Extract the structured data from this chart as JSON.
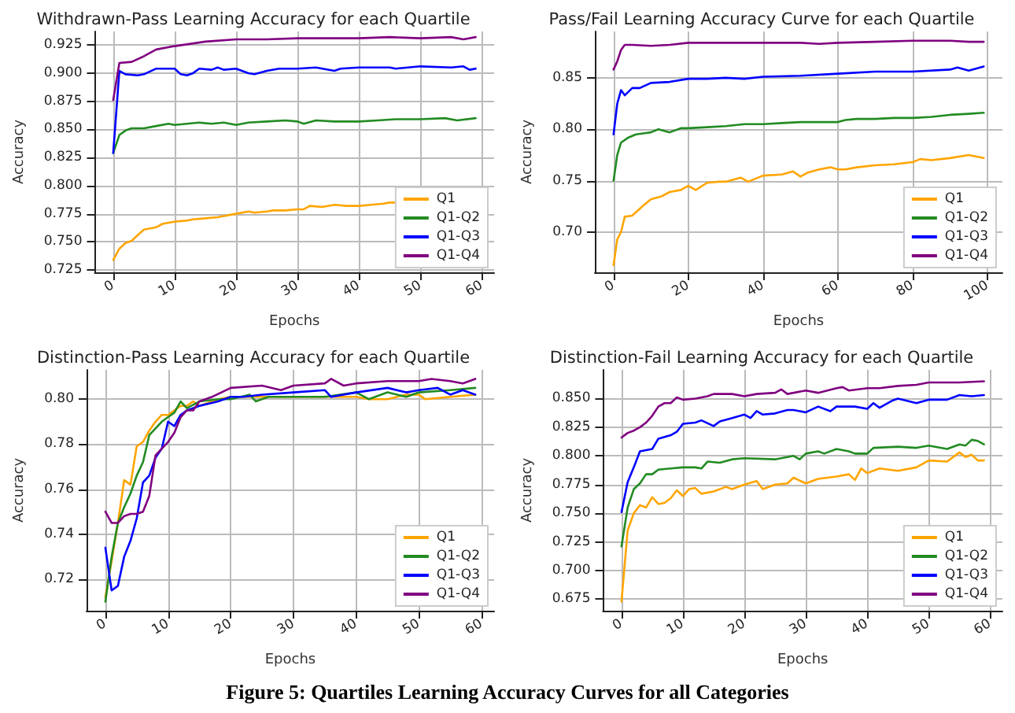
{
  "chart_data": [
    {
      "type": "line",
      "title": "Withdrawn-Pass Learning Accuracy for each Quartile",
      "xlabel": "Epochs",
      "ylabel": "Accuracy",
      "xlim": [
        -3,
        62
      ],
      "xticks": [
        0,
        10,
        20,
        30,
        40,
        50,
        60
      ],
      "ylim": [
        0.723,
        0.937
      ],
      "yticks": [
        0.725,
        {
          "value": 0.75,
          "label": "0.750"
        },
        0.775,
        {
          "value": 0.8,
          "label": "0.800"
        },
        0.825,
        {
          "value": 0.85,
          "label": "0.850"
        },
        0.875,
        {
          "value": 0.9,
          "label": "0.900"
        },
        0.925
      ],
      "grid": true,
      "legend": "bottom right",
      "marker": "none",
      "series": [
        {
          "name": "Q1",
          "color": "#ffa500",
          "x": [
            0,
            1,
            2,
            3,
            4,
            5,
            6,
            7,
            8,
            9,
            10,
            12,
            13,
            15,
            17,
            20,
            22,
            23,
            25,
            26,
            28,
            30,
            31,
            32,
            34,
            36,
            38,
            40,
            42,
            44,
            45,
            47
          ],
          "values": [
            0.734,
            0.744,
            0.749,
            0.751,
            0.756,
            0.761,
            0.762,
            0.763,
            0.766,
            0.767,
            0.768,
            0.769,
            0.77,
            0.771,
            0.772,
            0.775,
            0.777,
            0.776,
            0.777,
            0.778,
            0.778,
            0.779,
            0.779,
            0.782,
            0.781,
            0.783,
            0.782,
            0.782,
            0.783,
            0.784,
            0.785,
            0.785
          ]
        },
        {
          "name": "Q1-Q2",
          "color": "#228b22",
          "x": [
            0,
            1,
            2,
            3,
            5,
            7,
            9,
            10,
            12,
            14,
            16,
            18,
            20,
            22,
            25,
            28,
            30,
            31,
            33,
            36,
            40,
            43,
            46,
            50,
            54,
            56,
            59
          ],
          "values": [
            0.829,
            0.845,
            0.849,
            0.851,
            0.851,
            0.853,
            0.855,
            0.854,
            0.855,
            0.856,
            0.855,
            0.856,
            0.854,
            0.856,
            0.857,
            0.858,
            0.857,
            0.855,
            0.858,
            0.857,
            0.857,
            0.858,
            0.859,
            0.859,
            0.86,
            0.858,
            0.86
          ]
        },
        {
          "name": "Q1-Q3",
          "color": "#0000ff",
          "x": [
            0,
            1,
            2,
            4,
            5,
            7,
            10,
            11,
            12,
            13,
            14,
            16,
            17,
            18,
            20,
            22,
            23,
            25,
            27,
            30,
            33,
            36,
            37,
            40,
            45,
            46,
            50,
            55,
            57,
            58,
            59
          ],
          "values": [
            0.829,
            0.902,
            0.899,
            0.898,
            0.899,
            0.904,
            0.904,
            0.899,
            0.898,
            0.9,
            0.904,
            0.903,
            0.905,
            0.903,
            0.904,
            0.9,
            0.899,
            0.902,
            0.904,
            0.904,
            0.905,
            0.902,
            0.904,
            0.905,
            0.905,
            0.904,
            0.906,
            0.905,
            0.906,
            0.903,
            0.904
          ]
        },
        {
          "name": "Q1-Q4",
          "color": "#800080",
          "x": [
            0,
            1,
            3,
            5,
            7,
            10,
            15,
            20,
            25,
            30,
            40,
            45,
            50,
            55,
            57,
            59
          ],
          "values": [
            0.876,
            0.909,
            0.91,
            0.915,
            0.921,
            0.924,
            0.928,
            0.93,
            0.93,
            0.931,
            0.931,
            0.932,
            0.931,
            0.932,
            0.93,
            0.932
          ]
        }
      ]
    },
    {
      "type": "line",
      "title": "Pass/Fail Learning Accuracy Curve for each Quartile",
      "xlabel": "Epochs",
      "ylabel": "Accuracy",
      "xlim": [
        -5,
        104
      ],
      "xticks": [
        0,
        20,
        40,
        60,
        80,
        100
      ],
      "ylim": [
        0.661,
        0.895
      ],
      "yticks": [
        {
          "value": 0.7,
          "label": "0.70"
        },
        0.75,
        {
          "value": 0.8,
          "label": "0.80"
        },
        0.85
      ],
      "grid": true,
      "legend": "bottom right",
      "marker": "none",
      "series": [
        {
          "name": "Q1",
          "color": "#ffa500",
          "x": [
            0,
            1,
            2,
            3,
            5,
            8,
            10,
            13,
            15,
            18,
            20,
            22,
            25,
            28,
            30,
            34,
            36,
            40,
            45,
            48,
            50,
            52,
            55,
            58,
            60,
            62,
            65,
            70,
            75,
            80,
            82,
            85,
            90,
            95,
            99
          ],
          "values": [
            0.668,
            0.693,
            0.7,
            0.715,
            0.716,
            0.726,
            0.732,
            0.735,
            0.739,
            0.741,
            0.745,
            0.741,
            0.748,
            0.749,
            0.749,
            0.753,
            0.749,
            0.755,
            0.756,
            0.759,
            0.754,
            0.758,
            0.761,
            0.763,
            0.761,
            0.761,
            0.763,
            0.765,
            0.766,
            0.768,
            0.771,
            0.77,
            0.772,
            0.775,
            0.772
          ]
        },
        {
          "name": "Q1-Q2",
          "color": "#228b22",
          "x": [
            0,
            1,
            2,
            4,
            6,
            8,
            10,
            12,
            15,
            18,
            20,
            25,
            30,
            35,
            40,
            45,
            50,
            55,
            60,
            62,
            65,
            70,
            75,
            80,
            85,
            90,
            95,
            99
          ],
          "values": [
            0.75,
            0.775,
            0.787,
            0.792,
            0.795,
            0.796,
            0.797,
            0.8,
            0.797,
            0.801,
            0.801,
            0.802,
            0.803,
            0.805,
            0.805,
            0.806,
            0.807,
            0.807,
            0.807,
            0.809,
            0.81,
            0.81,
            0.811,
            0.811,
            0.812,
            0.814,
            0.815,
            0.816
          ]
        },
        {
          "name": "Q1-Q3",
          "color": "#0000ff",
          "x": [
            0,
            1,
            2,
            3,
            5,
            7,
            10,
            15,
            20,
            25,
            30,
            35,
            40,
            50,
            60,
            70,
            80,
            90,
            92,
            95,
            99
          ],
          "values": [
            0.795,
            0.825,
            0.838,
            0.833,
            0.84,
            0.84,
            0.845,
            0.846,
            0.849,
            0.849,
            0.85,
            0.849,
            0.851,
            0.852,
            0.854,
            0.856,
            0.856,
            0.858,
            0.86,
            0.857,
            0.861
          ]
        },
        {
          "name": "Q1-Q4",
          "color": "#800080",
          "x": [
            0,
            1,
            2,
            3,
            5,
            10,
            15,
            20,
            30,
            40,
            50,
            55,
            60,
            70,
            80,
            90,
            95,
            99
          ],
          "values": [
            0.858,
            0.866,
            0.877,
            0.882,
            0.882,
            0.881,
            0.882,
            0.884,
            0.884,
            0.884,
            0.884,
            0.883,
            0.884,
            0.885,
            0.886,
            0.886,
            0.885,
            0.885
          ]
        }
      ]
    },
    {
      "type": "line",
      "title": "Distinction-Pass Learning Accuracy for each Quartile",
      "xlabel": "Epochs",
      "ylabel": "Accuracy",
      "xlim": [
        -3,
        62
      ],
      "xticks": [
        0,
        10,
        20,
        30,
        40,
        50,
        60
      ],
      "ylim": [
        0.706,
        0.813
      ],
      "yticks": [
        0.72,
        0.74,
        0.76,
        0.78,
        {
          "value": 0.8,
          "label": "0.80"
        }
      ],
      "grid": true,
      "legend": "bottom right",
      "marker": "none",
      "series": [
        {
          "name": "Q1",
          "color": "#ffa500",
          "x": [
            0,
            1,
            2,
            3,
            4,
            5,
            6,
            7,
            8,
            9,
            10,
            11,
            12,
            13,
            14,
            15,
            16,
            18,
            20,
            25,
            30,
            35,
            40,
            42,
            45,
            48,
            50,
            51,
            55,
            59
          ],
          "values": [
            0.712,
            0.728,
            0.745,
            0.764,
            0.762,
            0.779,
            0.781,
            0.786,
            0.79,
            0.793,
            0.793,
            0.795,
            0.797,
            0.797,
            0.799,
            0.797,
            0.798,
            0.8,
            0.801,
            0.801,
            0.801,
            0.801,
            0.801,
            0.8,
            0.8,
            0.802,
            0.802,
            0.8,
            0.801,
            0.802
          ]
        },
        {
          "name": "Q1-Q2",
          "color": "#228b22",
          "x": [
            0,
            1,
            2,
            3,
            4,
            5,
            6,
            7,
            8,
            9,
            10,
            11,
            12,
            13,
            15,
            18,
            20,
            23,
            24,
            26,
            30,
            35,
            40,
            42,
            45,
            48,
            50,
            55,
            59
          ],
          "values": [
            0.71,
            0.73,
            0.745,
            0.752,
            0.758,
            0.766,
            0.772,
            0.784,
            0.787,
            0.79,
            0.792,
            0.794,
            0.799,
            0.796,
            0.799,
            0.8,
            0.8,
            0.802,
            0.799,
            0.801,
            0.801,
            0.801,
            0.803,
            0.8,
            0.803,
            0.801,
            0.803,
            0.804,
            0.805
          ]
        },
        {
          "name": "Q1-Q3",
          "color": "#0000ff",
          "x": [
            0,
            1,
            2,
            3,
            4,
            5,
            6,
            7,
            8,
            9,
            10,
            11,
            12,
            13,
            15,
            18,
            20,
            22,
            25,
            30,
            35,
            36,
            40,
            45,
            48,
            50,
            53,
            55,
            57,
            59
          ],
          "values": [
            0.734,
            0.715,
            0.717,
            0.73,
            0.737,
            0.747,
            0.763,
            0.766,
            0.774,
            0.778,
            0.79,
            0.788,
            0.793,
            0.795,
            0.797,
            0.799,
            0.801,
            0.801,
            0.802,
            0.803,
            0.804,
            0.801,
            0.803,
            0.805,
            0.803,
            0.804,
            0.805,
            0.802,
            0.804,
            0.802
          ]
        },
        {
          "name": "Q1-Q4",
          "color": "#800080",
          "x": [
            0,
            1,
            2,
            3,
            4,
            5,
            6,
            7,
            8,
            9,
            10,
            11,
            12,
            13,
            14,
            15,
            17,
            20,
            25,
            28,
            30,
            35,
            36,
            38,
            40,
            45,
            50,
            52,
            55,
            57,
            59
          ],
          "values": [
            0.75,
            0.745,
            0.745,
            0.748,
            0.749,
            0.749,
            0.75,
            0.757,
            0.775,
            0.778,
            0.781,
            0.785,
            0.792,
            0.795,
            0.795,
            0.799,
            0.801,
            0.805,
            0.806,
            0.804,
            0.806,
            0.807,
            0.809,
            0.806,
            0.807,
            0.808,
            0.808,
            0.809,
            0.808,
            0.807,
            0.809
          ]
        }
      ]
    },
    {
      "type": "line",
      "title": "Distinction-Fail Learning Accuracy for each Quartile",
      "xlabel": "Epochs",
      "ylabel": "Accuracy",
      "xlim": [
        -3,
        62
      ],
      "xticks": [
        0,
        10,
        20,
        30,
        40,
        50,
        60
      ],
      "ylim": [
        0.665,
        0.875
      ],
      "yticks": [
        0.675,
        {
          "value": 0.7,
          "label": "0.700"
        },
        0.725,
        {
          "value": 0.75,
          "label": "0.750"
        },
        0.775,
        {
          "value": 0.8,
          "label": "0.800"
        },
        0.825,
        {
          "value": 0.85,
          "label": "0.850"
        }
      ],
      "grid": true,
      "legend": "bottom right",
      "marker": "none",
      "annotations": [
        "Figure 5: Quartiles Learning Accuracy Curves for all Categories"
      ],
      "series": [
        {
          "name": "Q1",
          "color": "#ffa500",
          "x": [
            0,
            1,
            2,
            3,
            4,
            5,
            6,
            7,
            8,
            9,
            10,
            11,
            12,
            13,
            15,
            17,
            18,
            20,
            22,
            23,
            25,
            27,
            28,
            30,
            32,
            35,
            37,
            38,
            39,
            40,
            42,
            45,
            48,
            50,
            53,
            55,
            56,
            57,
            58,
            59
          ],
          "values": [
            0.673,
            0.735,
            0.75,
            0.757,
            0.755,
            0.764,
            0.758,
            0.759,
            0.763,
            0.77,
            0.765,
            0.771,
            0.772,
            0.767,
            0.769,
            0.773,
            0.771,
            0.775,
            0.778,
            0.771,
            0.775,
            0.776,
            0.781,
            0.776,
            0.78,
            0.782,
            0.784,
            0.779,
            0.789,
            0.785,
            0.789,
            0.787,
            0.79,
            0.796,
            0.795,
            0.803,
            0.799,
            0.801,
            0.796,
            0.796
          ]
        },
        {
          "name": "Q1-Q2",
          "color": "#228b22",
          "x": [
            0,
            1,
            2,
            3,
            4,
            5,
            6,
            8,
            10,
            12,
            13,
            14,
            16,
            18,
            20,
            25,
            28,
            29,
            30,
            32,
            33,
            35,
            37,
            38,
            40,
            41,
            45,
            48,
            50,
            53,
            55,
            56,
            57,
            58,
            59
          ],
          "values": [
            0.721,
            0.755,
            0.771,
            0.776,
            0.784,
            0.784,
            0.788,
            0.789,
            0.79,
            0.79,
            0.789,
            0.795,
            0.794,
            0.797,
            0.798,
            0.797,
            0.8,
            0.797,
            0.802,
            0.804,
            0.802,
            0.806,
            0.804,
            0.802,
            0.802,
            0.807,
            0.808,
            0.807,
            0.809,
            0.806,
            0.81,
            0.809,
            0.814,
            0.813,
            0.81
          ]
        },
        {
          "name": "Q1-Q3",
          "color": "#0000ff",
          "x": [
            0,
            1,
            2,
            3,
            5,
            6,
            8,
            9,
            10,
            12,
            13,
            15,
            16,
            18,
            20,
            21,
            22,
            23,
            25,
            27,
            28,
            30,
            32,
            34,
            35,
            38,
            40,
            41,
            42,
            44,
            45,
            48,
            50,
            53,
            55,
            57,
            59
          ],
          "values": [
            0.751,
            0.777,
            0.79,
            0.804,
            0.806,
            0.815,
            0.818,
            0.821,
            0.828,
            0.829,
            0.831,
            0.826,
            0.83,
            0.833,
            0.836,
            0.833,
            0.839,
            0.836,
            0.837,
            0.84,
            0.84,
            0.838,
            0.843,
            0.839,
            0.843,
            0.843,
            0.841,
            0.846,
            0.842,
            0.848,
            0.85,
            0.846,
            0.849,
            0.849,
            0.853,
            0.852,
            0.853
          ]
        },
        {
          "name": "Q1-Q4",
          "color": "#800080",
          "x": [
            0,
            1,
            2,
            3,
            4,
            5,
            6,
            7,
            8,
            9,
            10,
            12,
            14,
            15,
            18,
            20,
            22,
            25,
            26,
            27,
            30,
            32,
            35,
            36,
            37,
            40,
            42,
            45,
            48,
            50,
            55,
            59
          ],
          "values": [
            0.816,
            0.82,
            0.822,
            0.825,
            0.829,
            0.835,
            0.843,
            0.846,
            0.846,
            0.851,
            0.849,
            0.85,
            0.852,
            0.854,
            0.854,
            0.852,
            0.854,
            0.855,
            0.858,
            0.854,
            0.857,
            0.855,
            0.859,
            0.86,
            0.857,
            0.859,
            0.859,
            0.861,
            0.862,
            0.864,
            0.864,
            0.865
          ]
        }
      ]
    }
  ]
}
